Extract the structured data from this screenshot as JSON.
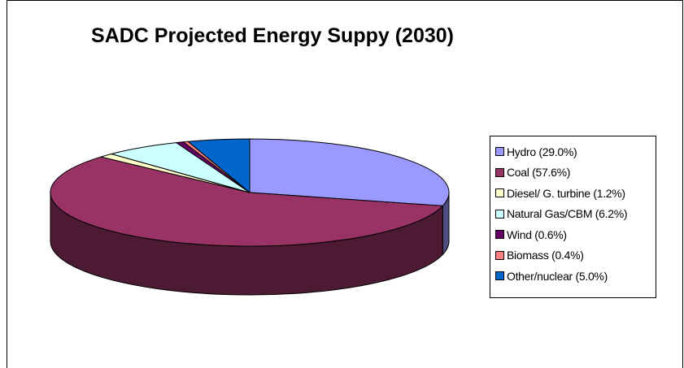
{
  "chart_data": {
    "type": "pie",
    "title": "SADC Projected Energy Suppy (2030)",
    "three_d": true,
    "legend_position": "right",
    "slices": [
      {
        "label": "Hydro (29.0%)",
        "value": 29.0,
        "color": "#9999ff"
      },
      {
        "label": "Coal (57.6%)",
        "value": 57.6,
        "color": "#993366"
      },
      {
        "label": "Diesel/ G. turbine (1.2%)",
        "value": 1.2,
        "color": "#ffffcc"
      },
      {
        "label": "Natural Gas/CBM (6.2%)",
        "value": 6.2,
        "color": "#ccffff"
      },
      {
        "label": "Wind (0.6%)",
        "value": 0.6,
        "color": "#660066"
      },
      {
        "label": "Biomass (0.4%)",
        "value": 0.4,
        "color": "#ff8080"
      },
      {
        "label": "Other/nuclear (5.0%)",
        "value": 5.0,
        "color": "#0066cc"
      }
    ]
  }
}
